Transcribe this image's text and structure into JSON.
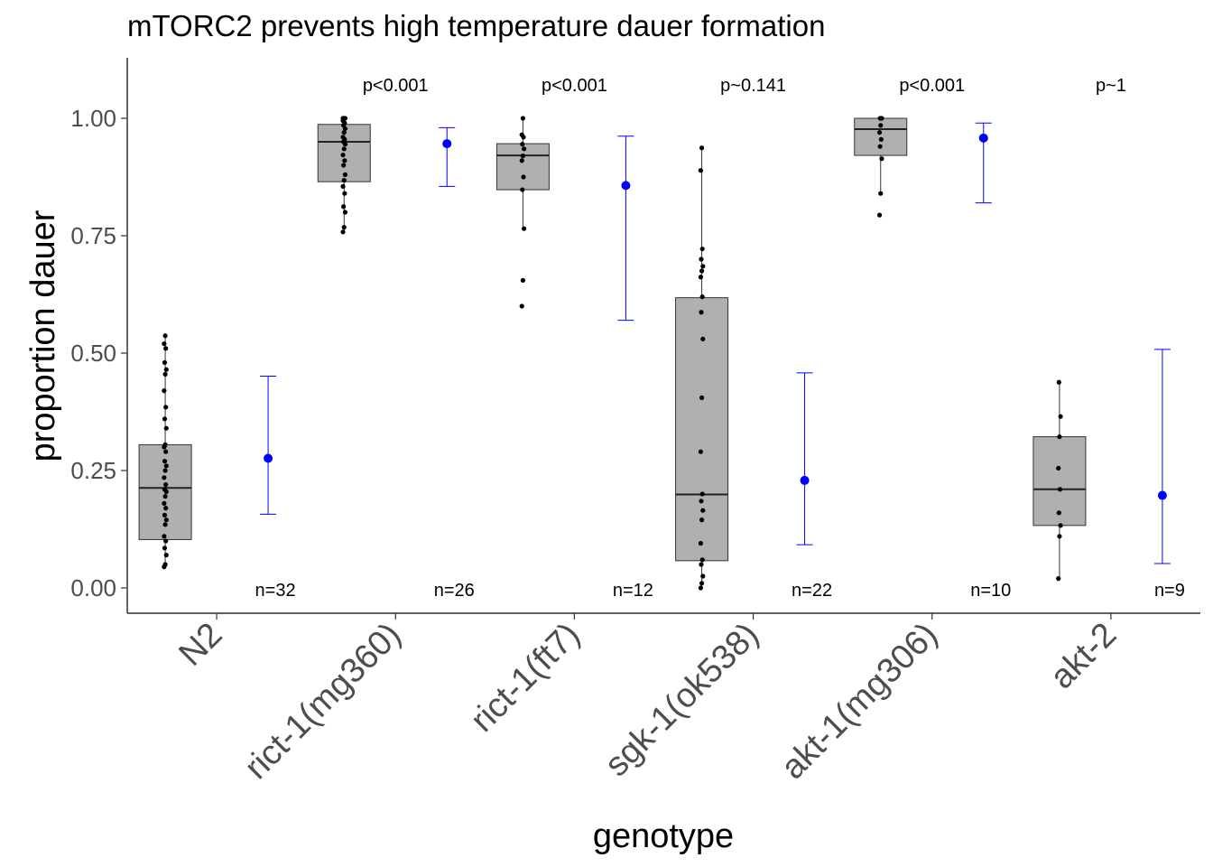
{
  "chart_data": {
    "type": "box",
    "title": "mTORC2 prevents high temperature dauer formation",
    "xlabel": "genotype",
    "ylabel": "proportion dauer",
    "ylim": [
      -0.055,
      1.125
    ],
    "yticks": [
      "0.00",
      "0.25",
      "0.50",
      "0.75",
      "1.00"
    ],
    "ytick_values": [
      0,
      0.25,
      0.5,
      0.75,
      1.0
    ],
    "grid": false,
    "legend": "none",
    "colors": {
      "box_fill": "#b0b0b0",
      "box_stroke": "#333333",
      "points": "#000000",
      "estimate": "#0000ff"
    },
    "categories": [
      "N2",
      "rict-1(mg360)",
      "rict-1(ft7)",
      "sgk-1(ok538)",
      "akt-1(mg306)",
      "akt-2"
    ],
    "groups": [
      {
        "genotype": "N2",
        "box": {
          "q1": 0.103,
          "median": 0.213,
          "q3": 0.305,
          "whisker_low": 0.045,
          "whisker_high": 0.537
        },
        "points": [
          0.045,
          0.05,
          0.07,
          0.085,
          0.1,
          0.11,
          0.135,
          0.145,
          0.155,
          0.17,
          0.18,
          0.195,
          0.205,
          0.21,
          0.22,
          0.235,
          0.25,
          0.26,
          0.27,
          0.29,
          0.3,
          0.305,
          0.34,
          0.36,
          0.385,
          0.42,
          0.455,
          0.465,
          0.48,
          0.51,
          0.52,
          0.537
        ],
        "estimate": 0.276,
        "ci": [
          0.157,
          0.451
        ],
        "pvalue": "",
        "n": "n=32"
      },
      {
        "genotype": "rict-1(mg360)",
        "box": {
          "q1": 0.865,
          "median": 0.95,
          "q3": 0.987,
          "whisker_low": 0.758,
          "whisker_high": 1.0
        },
        "points": [
          0.758,
          0.768,
          0.8,
          0.812,
          0.84,
          0.855,
          0.868,
          0.88,
          0.9,
          0.91,
          0.922,
          0.935,
          0.945,
          0.95,
          0.955,
          0.96,
          0.97,
          0.978,
          0.985,
          0.99,
          0.995,
          1.0,
          1.0,
          1.0,
          1.0,
          1.0
        ],
        "estimate": 0.946,
        "ci": [
          0.855,
          0.98
        ],
        "pvalue": "p<0.001",
        "n": "n=26"
      },
      {
        "genotype": "rict-1(ft7)",
        "box": {
          "q1": 0.848,
          "median": 0.921,
          "q3": 0.946,
          "whisker_low": 0.765,
          "whisker_high": 1.0
        },
        "points": [
          0.6,
          0.655,
          0.765,
          0.848,
          0.875,
          0.91,
          0.92,
          0.935,
          0.945,
          0.96,
          0.965,
          1.0
        ],
        "estimate": 0.857,
        "ci": [
          0.57,
          0.962
        ],
        "pvalue": "p<0.001",
        "n": "n=12"
      },
      {
        "genotype": "sgk-1(ok538)",
        "box": {
          "q1": 0.058,
          "median": 0.199,
          "q3": 0.618,
          "whisker_low": 0.0,
          "whisker_high": 0.937
        },
        "points": [
          0.0,
          0.01,
          0.025,
          0.05,
          0.06,
          0.095,
          0.145,
          0.165,
          0.185,
          0.2,
          0.29,
          0.405,
          0.53,
          0.587,
          0.62,
          0.662,
          0.675,
          0.685,
          0.7,
          0.722,
          0.889,
          0.937
        ],
        "estimate": 0.229,
        "ci": [
          0.092,
          0.458
        ],
        "pvalue": "p~0.141",
        "n": "n=22"
      },
      {
        "genotype": "akt-1(mg306)",
        "box": {
          "q1": 0.921,
          "median": 0.977,
          "q3": 1.0,
          "whisker_low": 0.84,
          "whisker_high": 1.0
        },
        "points": [
          0.794,
          0.84,
          0.914,
          0.94,
          0.955,
          0.97,
          0.985,
          1.0,
          1.0,
          1.0
        ],
        "estimate": 0.958,
        "ci": [
          0.82,
          0.99
        ],
        "pvalue": "p<0.001",
        "n": "n=10"
      },
      {
        "genotype": "akt-2",
        "box": {
          "q1": 0.133,
          "median": 0.21,
          "q3": 0.322,
          "whisker_low": 0.02,
          "whisker_high": 0.438
        },
        "points": [
          0.02,
          0.11,
          0.133,
          0.16,
          0.21,
          0.255,
          0.322,
          0.365,
          0.438
        ],
        "estimate": 0.197,
        "ci": [
          0.052,
          0.508
        ],
        "pvalue": "p~1",
        "n": "n=9"
      }
    ]
  }
}
